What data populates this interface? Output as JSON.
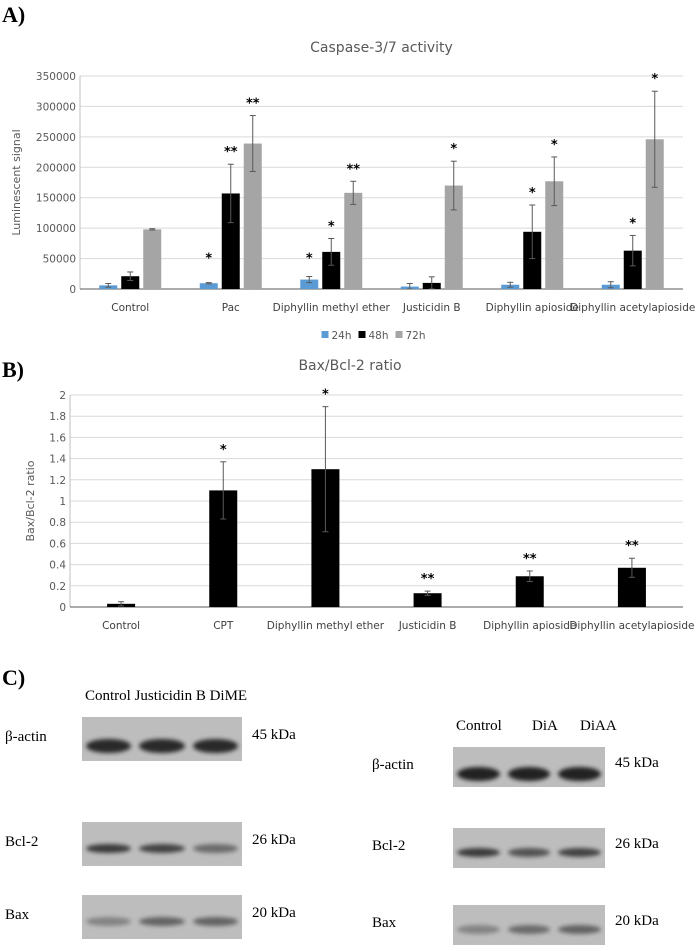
{
  "panels": {
    "a": "A)",
    "b": "B)",
    "c": "C)"
  },
  "chart_data": [
    {
      "type": "bar",
      "title": "Caspase-3/7 activity",
      "xlabel": "",
      "ylabel": "Luminescent signal",
      "ylim": [
        0,
        350000
      ],
      "yticks": [
        "0",
        "50000",
        "100000",
        "150000",
        "200000",
        "250000",
        "300000",
        "350000"
      ],
      "grid": true,
      "legend": "bottom",
      "categories": [
        "Control",
        "Pac",
        "Diphyllin methyl ether",
        "Justicidin B",
        "Diphyllin apioside",
        "Diphyllin acetylapioside"
      ],
      "series": [
        {
          "name": "24h",
          "color": "#5b9bd5",
          "values": [
            6000,
            9500,
            15500,
            4000,
            7000,
            7000
          ],
          "errors": [
            3000,
            1000,
            5000,
            5000,
            4000,
            5000
          ],
          "stars": [
            "",
            "*",
            "*",
            "",
            "",
            ""
          ]
        },
        {
          "name": "48h",
          "color": "#000000",
          "values": [
            21000,
            157000,
            61000,
            10000,
            94000,
            63000
          ],
          "errors": [
            7000,
            48000,
            22000,
            10000,
            44000,
            25000
          ],
          "stars": [
            "",
            "**",
            "*",
            "",
            "*",
            "*"
          ]
        },
        {
          "name": "72h",
          "color": "#a5a5a5",
          "values": [
            98000,
            239000,
            158000,
            170000,
            177000,
            246000
          ],
          "errors": [
            1000,
            46000,
            19000,
            40000,
            40000,
            79000
          ],
          "stars": [
            "",
            "**",
            "**",
            "*",
            "*",
            "*"
          ]
        }
      ]
    },
    {
      "type": "bar",
      "title": "Bax/Bcl-2 ratio",
      "xlabel": "",
      "ylabel": "Bax/Bcl-2 ratio",
      "ylim": [
        0,
        2
      ],
      "yticks": [
        "0",
        "0.2",
        "0.4",
        "0.6",
        "0.8",
        "1",
        "1.2",
        "1.4",
        "1.6",
        "1.8",
        "2"
      ],
      "grid": true,
      "categories": [
        "Control",
        "CPT",
        "Diphyllin methyl ether",
        "Justicidin B",
        "Diphyllin apioside",
        "Diphyllin acetylapioside"
      ],
      "series": [
        {
          "name": "ratio",
          "color": "#000000",
          "values": [
            0.03,
            1.1,
            1.3,
            0.13,
            0.29,
            0.37
          ],
          "errors": [
            0.02,
            0.27,
            0.59,
            0.02,
            0.05,
            0.09
          ],
          "stars": [
            "",
            "*",
            "*",
            "**",
            "**",
            "**"
          ]
        }
      ]
    }
  ],
  "blots": {
    "left": {
      "header": "Control Justicidin B DiME",
      "rows": [
        {
          "name": "β-actin",
          "size": "45 kDa",
          "intensity": [
            0.9,
            0.9,
            0.9
          ]
        },
        {
          "name": "Bcl-2",
          "size": "26 kDa",
          "intensity": [
            0.8,
            0.75,
            0.5
          ]
        },
        {
          "name": "Bax",
          "size": "20 kDa",
          "intensity": [
            0.35,
            0.55,
            0.55
          ]
        }
      ]
    },
    "right": {
      "header": [
        "Control",
        "DiA",
        "DiAA"
      ],
      "rows": [
        {
          "name": "β-actin",
          "size": "45 kDa",
          "intensity": [
            0.95,
            0.95,
            0.95
          ]
        },
        {
          "name": "Bcl-2",
          "size": "26 kDa",
          "intensity": [
            0.8,
            0.65,
            0.75
          ]
        },
        {
          "name": "Bax",
          "size": "20 kDa",
          "intensity": [
            0.35,
            0.5,
            0.55
          ]
        }
      ]
    }
  }
}
